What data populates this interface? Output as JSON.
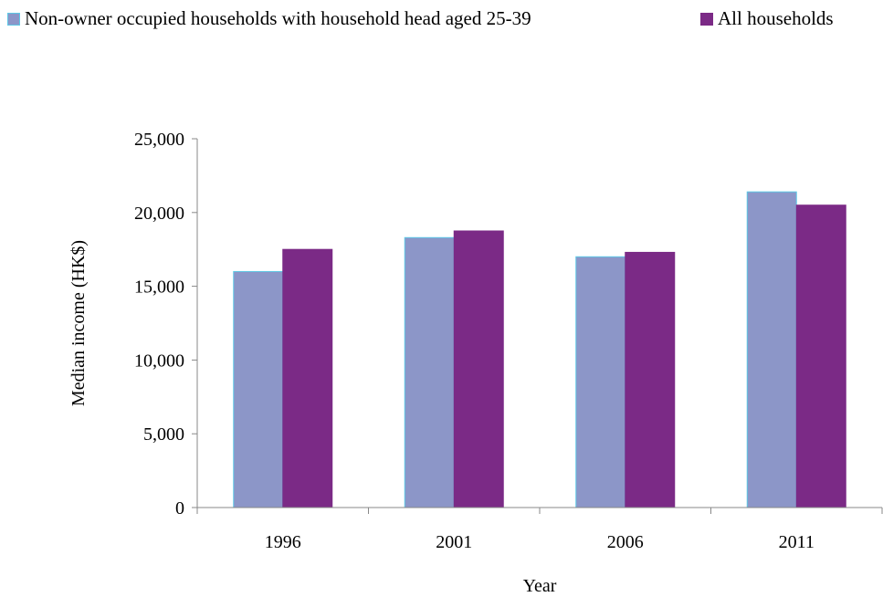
{
  "chart_data": {
    "type": "bar",
    "title": "",
    "xlabel": "Year",
    "ylabel": "Median income (HK$)",
    "categories": [
      "1996",
      "2001",
      "2006",
      "2011"
    ],
    "series": [
      {
        "name": "Non-owner occupied households with household head aged 25-39",
        "values": [
          16000,
          18300,
          17000,
          21400
        ],
        "color": "#8c96c8",
        "border": "#5ec8e6"
      },
      {
        "name": "All households",
        "values": [
          17500,
          18750,
          17300,
          20500
        ],
        "color": "#7b2a86",
        "border": "#7b2a86"
      }
    ],
    "ylim": [
      0,
      25000
    ],
    "yticks": [
      0,
      5000,
      10000,
      15000,
      20000,
      25000
    ],
    "ytick_labels": [
      "0",
      "5,000",
      "10,000",
      "15,000",
      "20,000",
      "25,000"
    ],
    "grid": false,
    "legend_position": "top"
  }
}
